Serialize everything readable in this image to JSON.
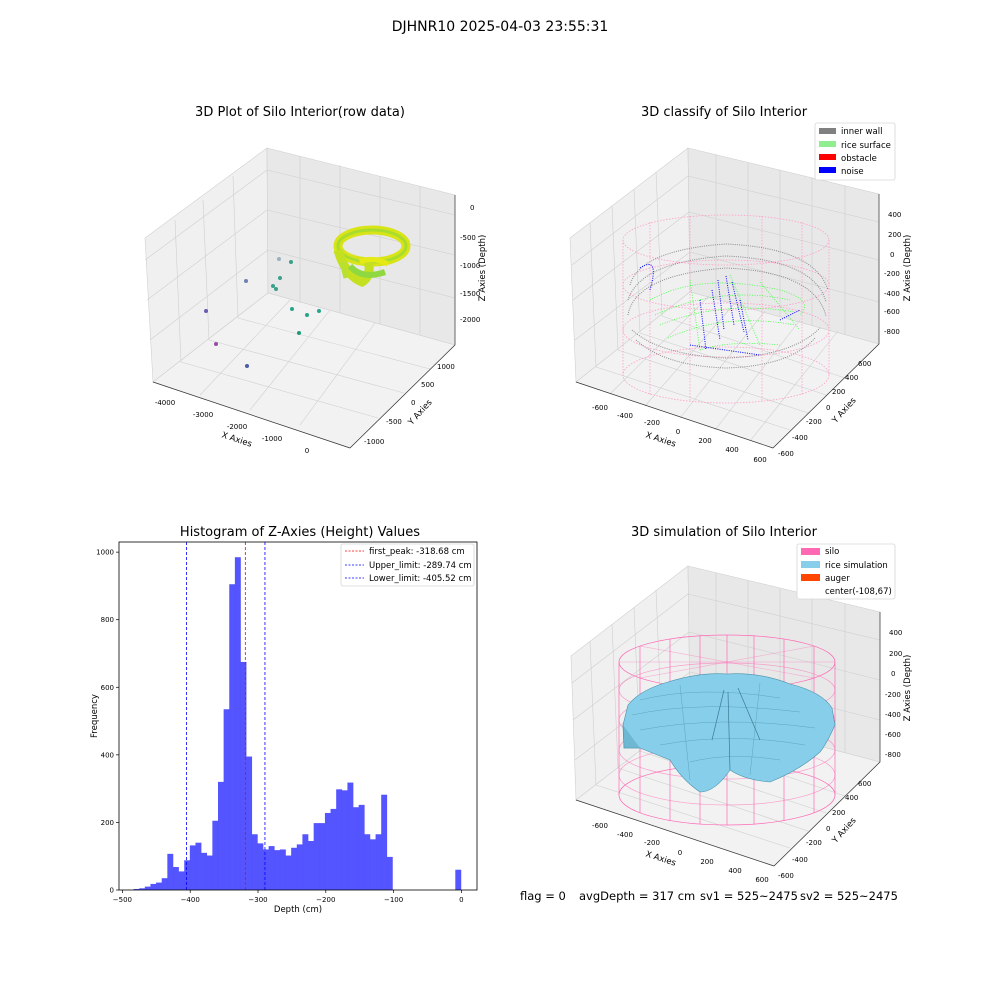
{
  "figure": {
    "suptitle": "DJHNR10 2025-04-03 23:55:31",
    "footer": {
      "flag": "flag = 0",
      "avg_depth": "avgDepth = 317 cm",
      "sv1": "sv1 = 525~2475",
      "sv2": "sv2 = 525~2475"
    }
  },
  "chart_data": [
    {
      "type": "scatter",
      "projection": "3d",
      "title": "3D Plot of Silo Interior(row data)",
      "xlabel": "X Axies",
      "ylabel": "Y Axies",
      "zlabel": "Z Axies (Depth)",
      "x_ticks": [
        "-4000",
        "-3000",
        "-2000",
        "-1000",
        "0"
      ],
      "y_ticks": [
        "-1000",
        "-500",
        "0",
        "500",
        "1000"
      ],
      "z_ticks": [
        "-2000",
        "-1500",
        "-1000",
        "-500",
        "0"
      ],
      "outlier_points_color": [
        "#5e4fa2",
        "#3a9a8b",
        "#2aa58a"
      ],
      "cluster_colors": [
        "#e8e812",
        "#8fdc3a",
        "#4fc07a"
      ]
    },
    {
      "type": "scatter",
      "projection": "3d",
      "title": "3D classify of Silo Interior",
      "xlabel": "X Axies",
      "ylabel": "Y Axies",
      "zlabel": "Z Axies (Depth)",
      "x_ticks": [
        "-600",
        "-400",
        "-200",
        "0",
        "200",
        "400",
        "600"
      ],
      "y_ticks": [
        "-600",
        "-400",
        "-200",
        "0",
        "200",
        "400",
        "600"
      ],
      "z_ticks": [
        "-800",
        "-600",
        "-400",
        "-200",
        "0",
        "200",
        "400"
      ],
      "legend": [
        {
          "label": "inner wall",
          "color": "#808080"
        },
        {
          "label": "rice surface",
          "color": "#90ee90"
        },
        {
          "label": "obstacle",
          "color": "#ff0000"
        },
        {
          "label": "noise",
          "color": "#0000ff"
        }
      ],
      "legend_placement": "top-right"
    },
    {
      "type": "bar",
      "subtype": "histogram",
      "title": "Histogram of Z-Axies (Height) Values",
      "xlabel": "Depth (cm)",
      "ylabel": "Frequency",
      "xlim": [
        -505,
        23
      ],
      "ylim": [
        0,
        1030
      ],
      "x_ticks": [
        -500,
        -400,
        -300,
        -200,
        -100,
        0
      ],
      "y_ticks": [
        0,
        200,
        400,
        600,
        800,
        1000
      ],
      "bar_color": "#4c4cff",
      "bin_width": 8.3,
      "bins": [
        [
          -483.5,
          3
        ],
        [
          -475.2,
          5
        ],
        [
          -466.9,
          10
        ],
        [
          -458.6,
          18
        ],
        [
          -450.3,
          22
        ],
        [
          -442.0,
          35
        ],
        [
          -433.7,
          107
        ],
        [
          -425.4,
          68
        ],
        [
          -417.1,
          55
        ],
        [
          -408.8,
          88
        ],
        [
          -400.5,
          132
        ],
        [
          -392.2,
          140
        ],
        [
          -383.9,
          110
        ],
        [
          -375.6,
          102
        ],
        [
          -367.3,
          205
        ],
        [
          -359.0,
          320
        ],
        [
          -350.7,
          535
        ],
        [
          -342.4,
          905
        ],
        [
          -334.1,
          985
        ],
        [
          -325.8,
          675
        ],
        [
          -317.5,
          395
        ],
        [
          -309.2,
          165
        ],
        [
          -300.9,
          138
        ],
        [
          -292.6,
          120
        ],
        [
          -284.3,
          130
        ],
        [
          -276.0,
          118
        ],
        [
          -267.7,
          120
        ],
        [
          -259.4,
          102
        ],
        [
          -251.1,
          125
        ],
        [
          -242.8,
          135
        ],
        [
          -234.5,
          165
        ],
        [
          -226.2,
          145
        ],
        [
          -217.9,
          198
        ],
        [
          -209.6,
          198
        ],
        [
          -201.3,
          228
        ],
        [
          -193.0,
          240
        ],
        [
          -184.7,
          298
        ],
        [
          -176.4,
          295
        ],
        [
          -168.1,
          318
        ],
        [
          -159.8,
          245
        ],
        [
          -151.5,
          252
        ],
        [
          -143.2,
          165
        ],
        [
          -134.9,
          150
        ],
        [
          -126.6,
          165
        ],
        [
          -118.3,
          282
        ],
        [
          -110.0,
          98
        ],
        [
          -9.0,
          60
        ]
      ],
      "vlines": [
        {
          "x": -318.68,
          "color": "#ff0000",
          "label": "first_peak: -318.68 cm"
        },
        {
          "x": -289.74,
          "color": "#0000ff",
          "label": "Upper_limit: -289.74 cm"
        },
        {
          "x": -405.52,
          "color": "#0000ff",
          "label": "Lower_limit: -405.52 cm"
        }
      ],
      "legend_placement": "top-right"
    },
    {
      "type": "surface",
      "projection": "3d",
      "title": "3D simulation of Silo Interior",
      "xlabel": "X Axies",
      "ylabel": "Y Axies",
      "zlabel": "Z Axies (Depth)",
      "x_ticks": [
        "-600",
        "-400",
        "-200",
        "0",
        "200",
        "400",
        "600"
      ],
      "y_ticks": [
        "-600",
        "-400",
        "-200",
        "0",
        "200",
        "400",
        "600"
      ],
      "z_ticks": [
        "-800",
        "-600",
        "-400",
        "-200",
        "0",
        "200",
        "400"
      ],
      "legend": [
        {
          "label": "silo",
          "color": "#ff69b4"
        },
        {
          "label": "rice simulation",
          "color": "#87ceeb"
        },
        {
          "label": "auger",
          "color": "#ff4500"
        },
        {
          "label": "center(-108,67)",
          "color": "none"
        }
      ],
      "legend_placement": "top-right"
    }
  ]
}
